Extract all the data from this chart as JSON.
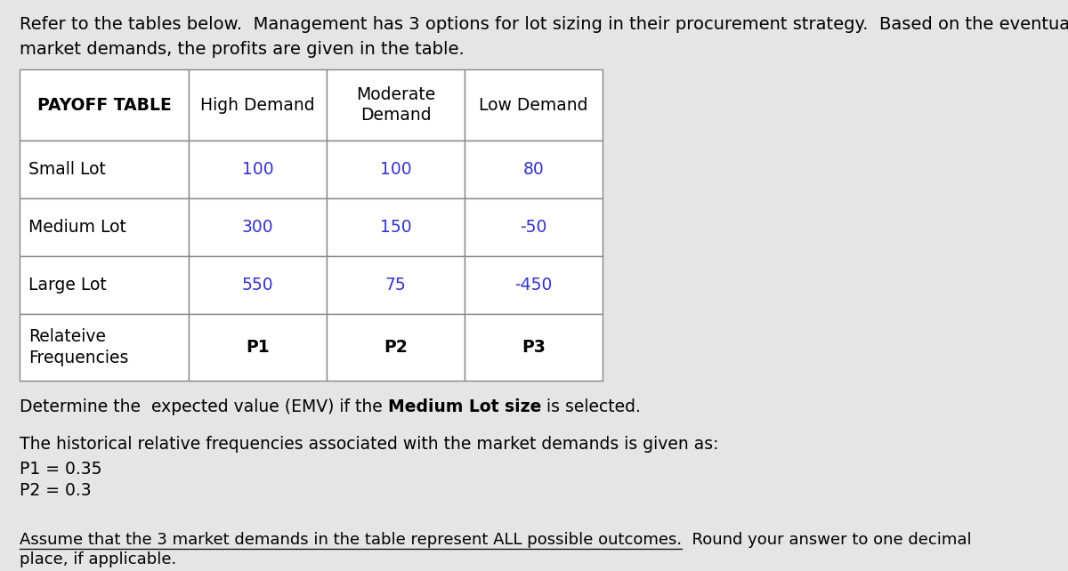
{
  "background_color": "#e5e5e5",
  "intro_line1": "Refer to the tables below.  Management has 3 options for lot sizing in their procurement strategy.  Based on the eventual",
  "intro_line2": "market demands, the profits are given in the table.",
  "table": {
    "col_headers": [
      "PAYOFF TABLE",
      "High Demand",
      "Moderate\nDemand",
      "Low Demand"
    ],
    "rows": [
      {
        "label": "Small Lot",
        "values": [
          "100",
          "100",
          "80"
        ]
      },
      {
        "label": "Medium Lot",
        "values": [
          "300",
          "150",
          "-50"
        ]
      },
      {
        "label": "Large Lot",
        "values": [
          "550",
          "75",
          "-450"
        ]
      },
      {
        "label": "Relateive\nFrequencies",
        "values": [
          "P1",
          "P2",
          "P3"
        ]
      }
    ],
    "value_color": "#3333cc",
    "label_color": "#000000",
    "header_color": "#000000",
    "border_color": "#888888",
    "bg_color": "#ffffff"
  },
  "question_normal1": "Determine the  expected value (EMV) if the ",
  "question_bold": "Medium Lot size",
  "question_normal2": " is selected.",
  "freq_heading": "The historical relative frequencies associated with the market demands is given as:",
  "freq_lines": [
    "P1 = 0.35",
    "P2 = 0.3"
  ],
  "footnote_underlined": "Assume that the 3 market demands in the table represent ALL possible outcomes.",
  "footnote_rest": "  Round your answer to one decimal",
  "footnote_line2": "place, if applicable.",
  "font_size_intro": 14,
  "font_size_header": 13.5,
  "font_size_body": 13.5,
  "font_size_footnote": 13
}
